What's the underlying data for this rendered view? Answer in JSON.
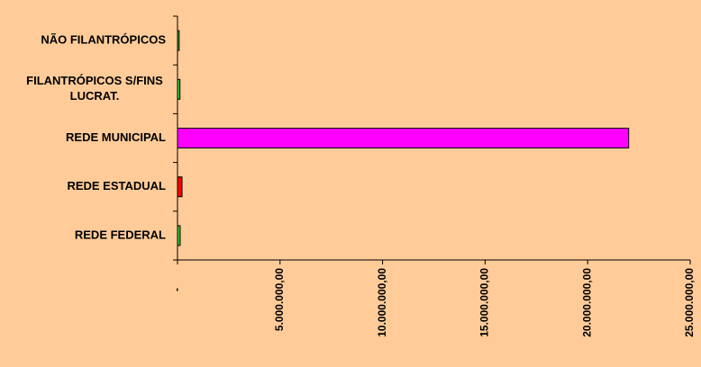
{
  "chart_data": {
    "type": "bar",
    "orientation": "horizontal",
    "title": "",
    "xlabel": "",
    "ylabel": "",
    "categories": [
      "NÃO FILANTRÓPICOS",
      "FILANTRÓPICOS S/FINS LUCRAT.",
      "REDE MUNICIPAL",
      "REDE ESTADUAL",
      "REDE FEDERAL"
    ],
    "category_lines": [
      [
        "NÃO FILANTRÓPICOS"
      ],
      [
        "FILANTRÓPICOS S/FINS",
        "LUCRAT."
      ],
      [
        "REDE MUNICIPAL"
      ],
      [
        "REDE ESTADUAL"
      ],
      [
        "REDE FEDERAL"
      ]
    ],
    "values": [
      80000,
      120000,
      22000000,
      220000,
      130000
    ],
    "bar_colors": [
      "#33CC33",
      "#33CC33",
      "#FF00FF",
      "#FF0000",
      "#33CC33"
    ],
    "xlim": [
      0,
      25000000
    ],
    "x_ticks": [
      0,
      5000000,
      10000000,
      15000000,
      20000000,
      25000000
    ],
    "x_tick_labels": [
      "-",
      "5.000.000,00",
      "10.000.000,00",
      "15.000.000,00",
      "20.000.000,00",
      "25.000.000,00"
    ],
    "grid": false,
    "legend": "none",
    "background_color": "#FFCC99"
  }
}
